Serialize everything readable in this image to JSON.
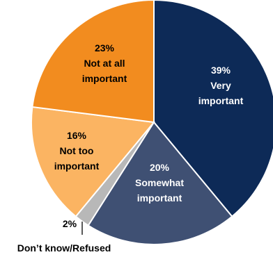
{
  "chart_data": {
    "type": "pie",
    "title": "",
    "slices": [
      {
        "label_pct": "39%",
        "label_lines": [
          "Very",
          "important"
        ],
        "value": 39,
        "color": "#0d2a57",
        "text_color": "#ffffff"
      },
      {
        "label_pct": "20%",
        "label_lines": [
          "Somewhat",
          "important"
        ],
        "value": 20,
        "color": "#3f5073",
        "text_color": "#ffffff"
      },
      {
        "label_pct": "2%",
        "label_lines": [
          "Don’t know/Refused"
        ],
        "value": 2,
        "color": "#b8b8b8",
        "text_color": "#000000"
      },
      {
        "label_pct": "16%",
        "label_lines": [
          "Not too",
          "important"
        ],
        "value": 16,
        "color": "#fbb462",
        "text_color": "#000000"
      },
      {
        "label_pct": "23%",
        "label_lines": [
          "Not at all",
          "important"
        ],
        "value": 23,
        "color": "#f28c1f",
        "text_color": "#000000"
      }
    ]
  }
}
